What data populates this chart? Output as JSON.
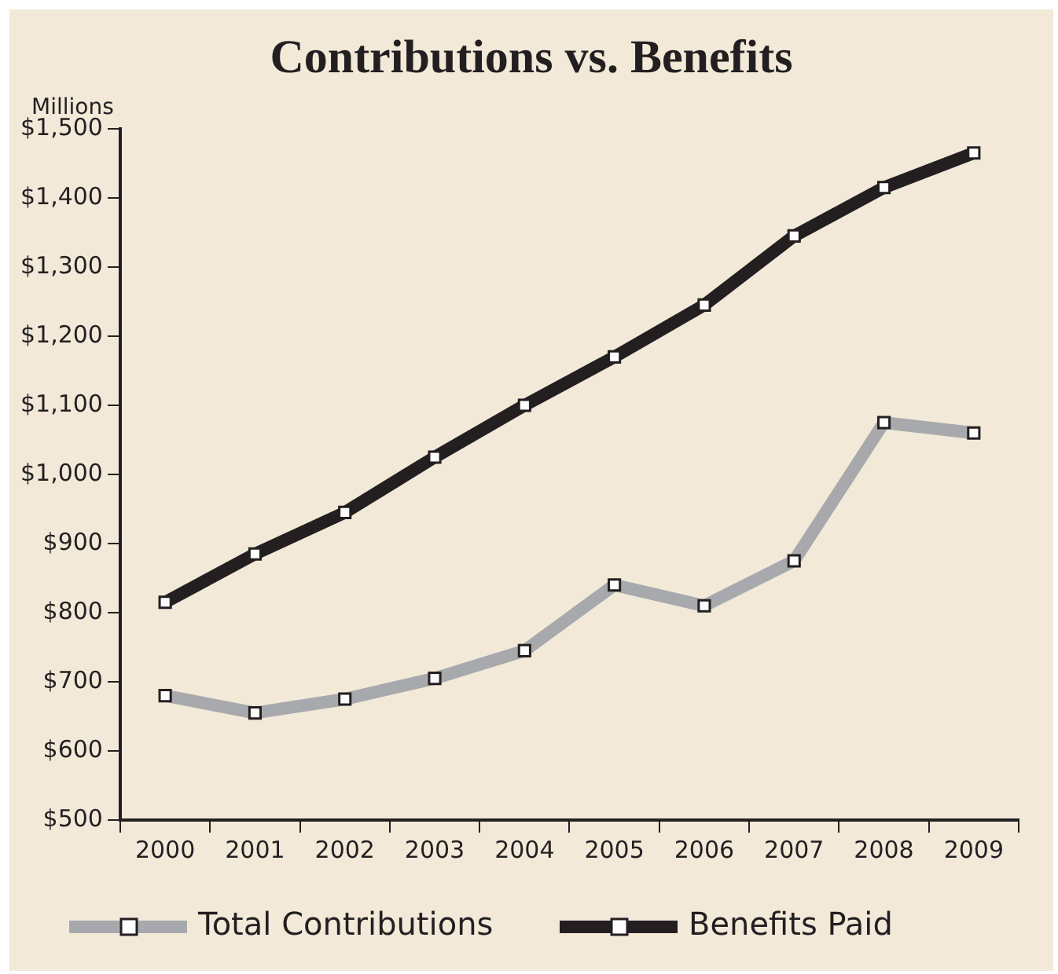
{
  "chart_data": {
    "type": "line",
    "title": "Contributions vs. Benefits",
    "ylabel": "Millions",
    "categories": [
      "2000",
      "2001",
      "2002",
      "2003",
      "2004",
      "2005",
      "2006",
      "2007",
      "2008",
      "2009"
    ],
    "series": [
      {
        "name": "Total Contributions",
        "color": "#a7a9ac",
        "values": [
          680,
          655,
          675,
          705,
          745,
          840,
          810,
          875,
          1075,
          1060
        ]
      },
      {
        "name": "Benefits Paid",
        "color": "#231f20",
        "values": [
          815,
          885,
          945,
          1025,
          1100,
          1170,
          1245,
          1345,
          1415,
          1465
        ]
      }
    ],
    "ylim": [
      500,
      1500
    ],
    "yticks": [
      {
        "value": 500,
        "label": "$500"
      },
      {
        "value": 600,
        "label": "$600"
      },
      {
        "value": 700,
        "label": "$700"
      },
      {
        "value": 800,
        "label": "$800"
      },
      {
        "value": 900,
        "label": "$900"
      },
      {
        "value": 1000,
        "label": "$1,000"
      },
      {
        "value": 1100,
        "label": "$1,100"
      },
      {
        "value": 1200,
        "label": "$1,200"
      },
      {
        "value": 1300,
        "label": "$1,300"
      },
      {
        "value": 1400,
        "label": "$1,400"
      },
      {
        "value": 1500,
        "label": "$1,500"
      }
    ],
    "grid": false,
    "legend": "bottom",
    "marker": "square",
    "line_style": "solid"
  }
}
